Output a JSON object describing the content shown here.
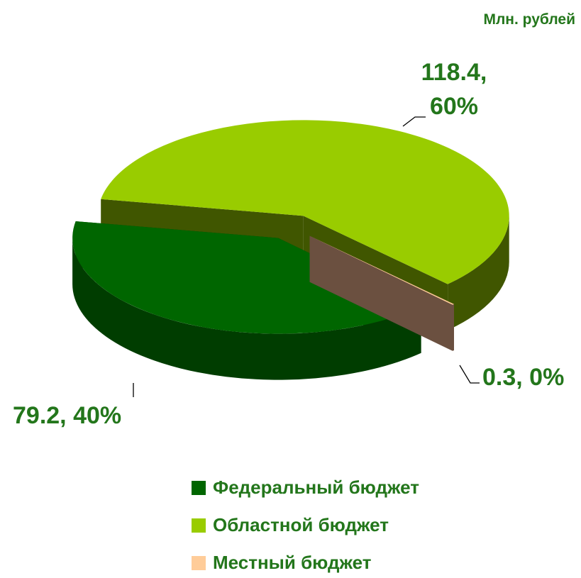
{
  "chart_data": {
    "type": "pie3d",
    "unit": "Млн. рублей",
    "categories": [
      "Федеральный бюджет",
      "Областной бюджет",
      "Местный бюджет"
    ],
    "values": [
      79.2,
      118.4,
      0.3
    ],
    "value_labels": [
      "79.2, 40%",
      "118.4, 60%",
      "0.3, 0%"
    ],
    "colors": [
      "#006600",
      "#99cc00",
      "#ffcc99"
    ],
    "legend": "bottom"
  }
}
